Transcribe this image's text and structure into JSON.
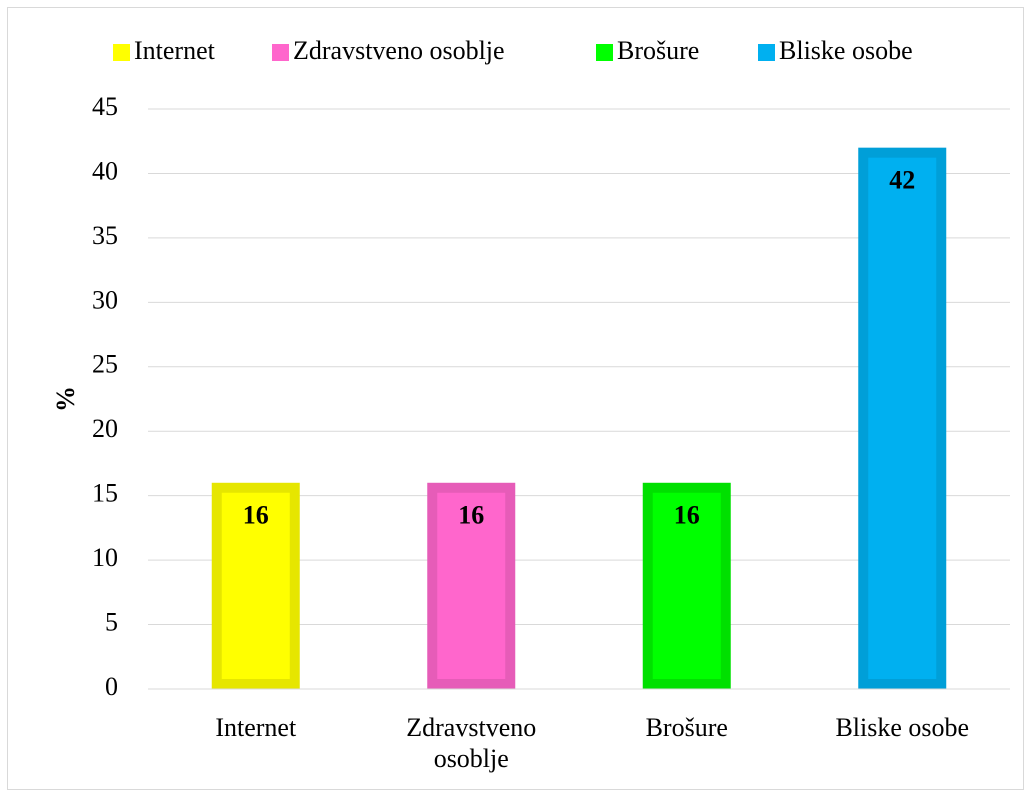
{
  "chart_data": {
    "type": "bar",
    "categories": [
      "Internet",
      "Zdravstveno osoblje",
      "Brošure",
      "Bliske osobe"
    ],
    "values": [
      16,
      16,
      16,
      42
    ],
    "colors": [
      "#ffff00",
      "#ff66cc",
      "#00ff00",
      "#00b0f0"
    ],
    "edge_colors": [
      "#e6e600",
      "#e65cb8",
      "#00e000",
      "#009fd8"
    ],
    "y_label": "%",
    "ylim": [
      0,
      45
    ],
    "yticks": [
      0,
      5,
      10,
      15,
      20,
      25,
      30,
      35,
      40,
      45
    ],
    "grid": true,
    "legend": "top"
  }
}
